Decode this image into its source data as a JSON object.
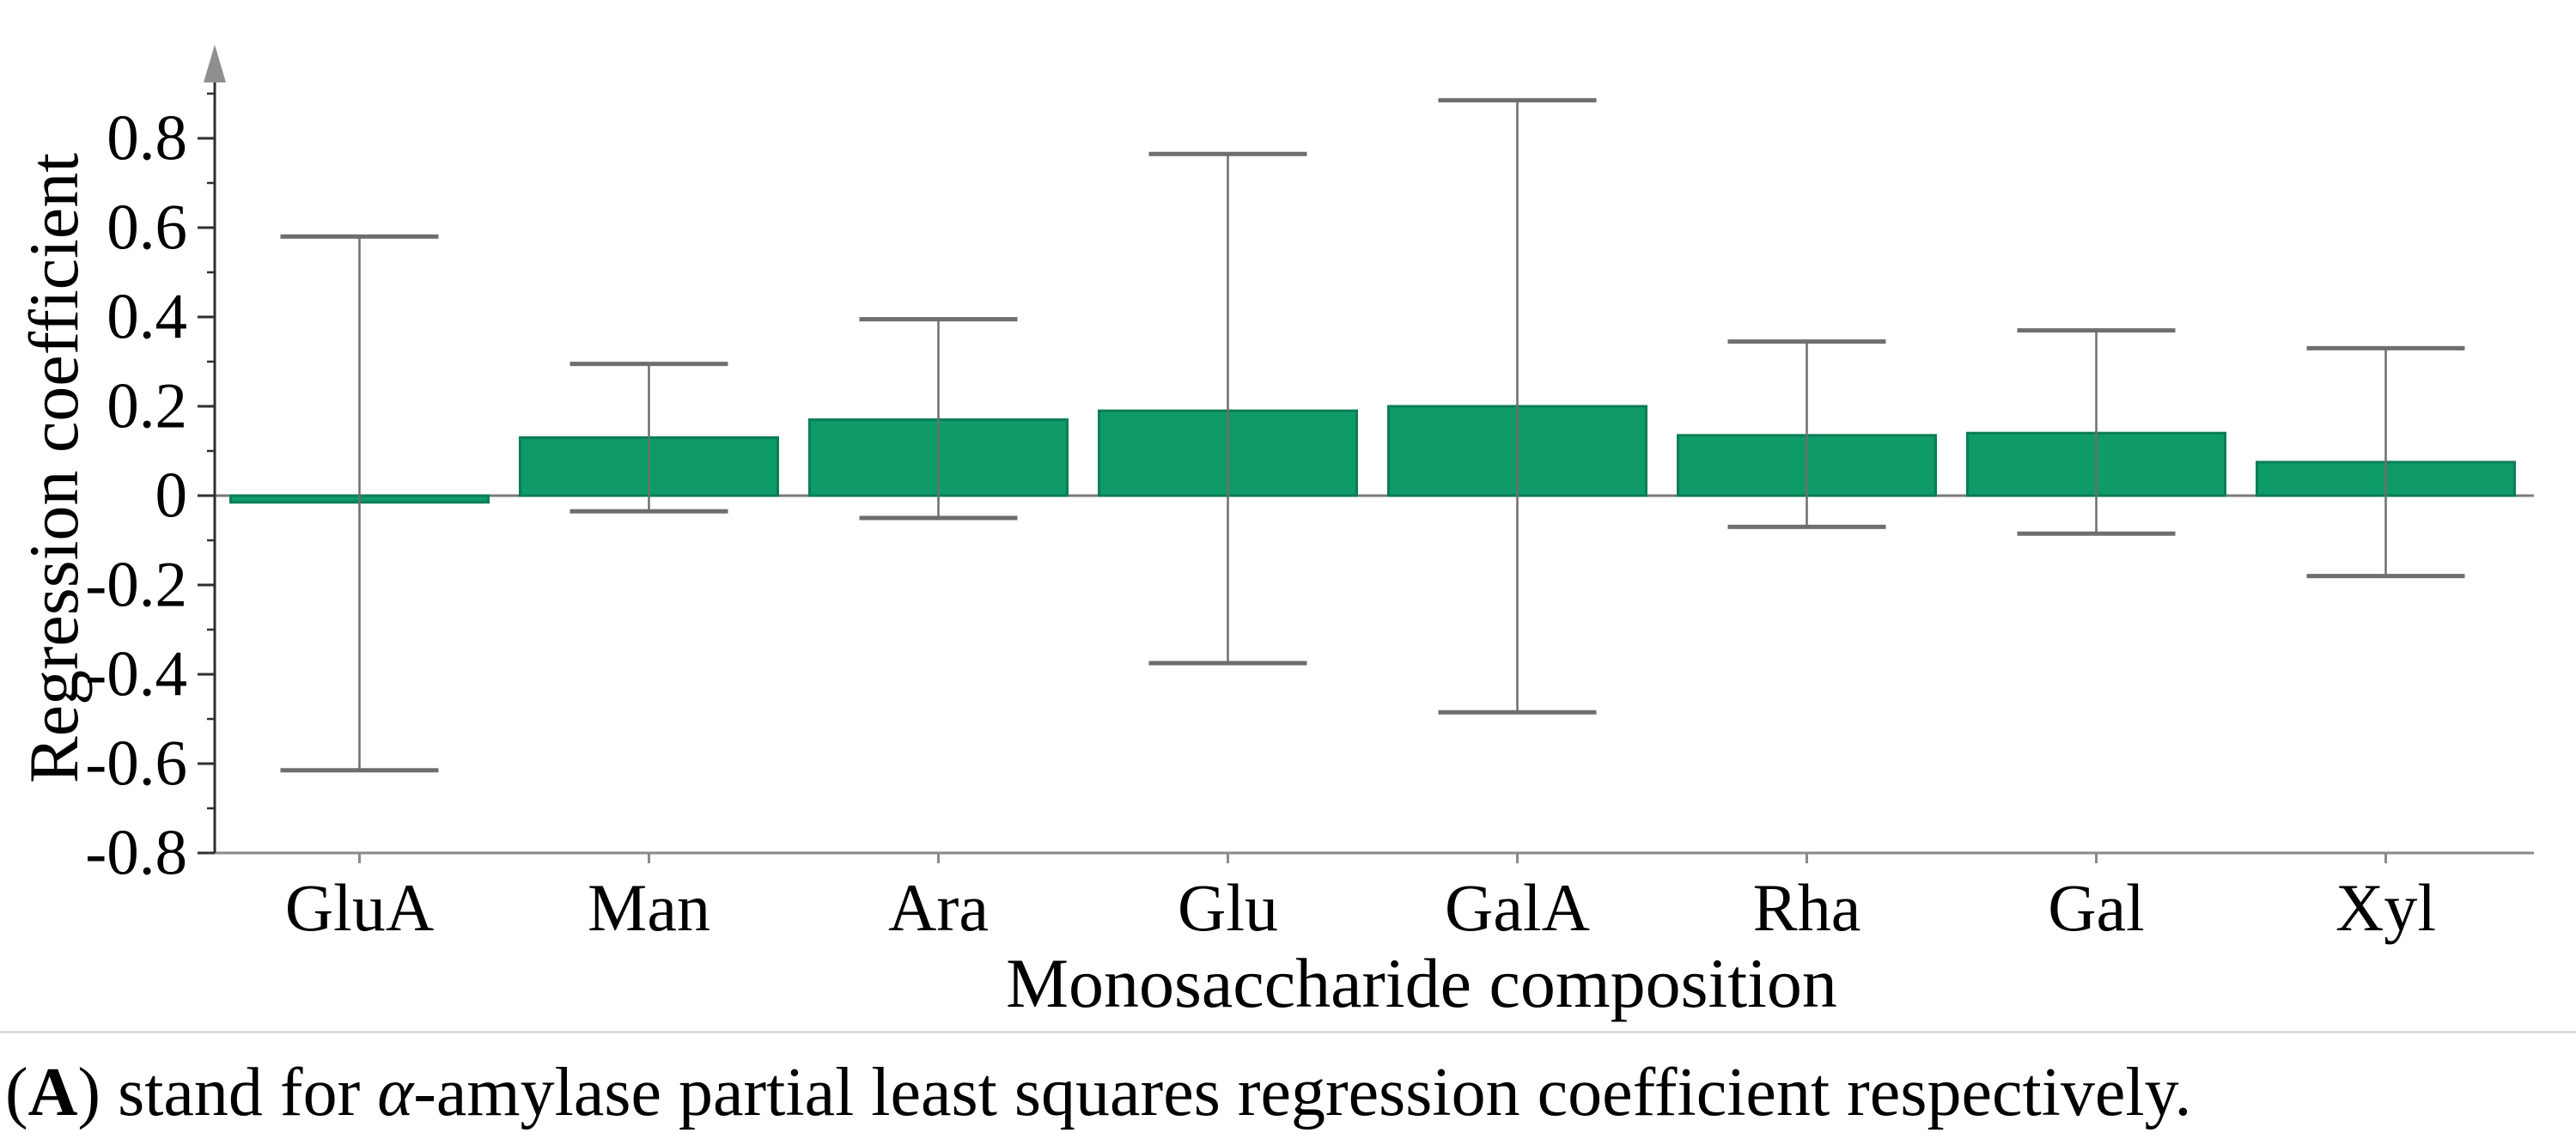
{
  "figure": {
    "caption": {
      "open_paren": "(",
      "panel_label": "A",
      "after_label": ") stand for ",
      "alpha": "α",
      "rest": "-amylase partial least squares regression coefficient respectively."
    }
  },
  "chart_data": {
    "type": "bar",
    "title": "",
    "xlabel": "Monosaccharide composition",
    "ylabel": "Regression coefficient",
    "categories": [
      "GluA",
      "Man",
      "Ara",
      "Glu",
      "GalA",
      "Rha",
      "Gal",
      "Xyl"
    ],
    "values": [
      -0.015,
      0.13,
      0.17,
      0.19,
      0.2,
      0.135,
      0.14,
      0.075
    ],
    "error_high": [
      0.58,
      0.295,
      0.395,
      0.765,
      0.885,
      0.345,
      0.37,
      0.33
    ],
    "error_low": [
      -0.615,
      -0.035,
      -0.05,
      -0.375,
      -0.485,
      -0.07,
      -0.085,
      -0.18
    ],
    "ylim": [
      -0.8,
      0.95
    ],
    "yticks_major": [
      0.8,
      0.6,
      0.4,
      0.2,
      0,
      -0.2,
      -0.4,
      -0.6,
      -0.8
    ],
    "ytick_labels": [
      "0.8",
      "0.6",
      "0.4",
      "0.2",
      "0",
      "-0.2",
      "-0.4",
      "-0.6",
      "-0.8"
    ],
    "yticks_minor": [
      0.9,
      0.7,
      0.5,
      0.3,
      0.1,
      -0.1,
      -0.3,
      -0.5,
      -0.7
    ],
    "grid": false,
    "legend": false,
    "bar_color": "#0E9B68",
    "bar_border_color": "#0A7E55",
    "error_bar_color": "#6E6E6E",
    "axis_color": "#2F2F2F",
    "baseline_color": "#8A8A8A",
    "zero_line_color": "#7A7A7A",
    "arrow_color": "#8F8F8F"
  }
}
